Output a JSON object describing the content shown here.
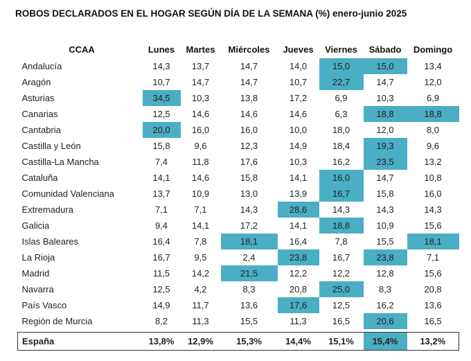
{
  "title": "ROBOS DECLARADOS EN EL HOGAR SEGÚN DÍA DE LA SEMANA (%) enero-junio 2025",
  "highlight_color": "#4aaec4",
  "table": {
    "headers": [
      "CCAA",
      "Lunes",
      "Martes",
      "Miércoles",
      "Jueves",
      "Viernes",
      "Sábado",
      "Domingo"
    ],
    "rows": [
      {
        "name": "Andalucía",
        "values": [
          "14,3",
          "13,7",
          "14,7",
          "14,0",
          "15,0",
          "15,0",
          "13,4"
        ],
        "highlighted": [
          4,
          5
        ]
      },
      {
        "name": "Aragón",
        "values": [
          "10,7",
          "14,7",
          "14,7",
          "10,7",
          "22,7",
          "14,7",
          "12,0"
        ],
        "highlighted": [
          4
        ]
      },
      {
        "name": "Asturias",
        "values": [
          "34,5",
          "10,3",
          "13,8",
          "17,2",
          "6,9",
          "10,3",
          "6,9"
        ],
        "highlighted": [
          0
        ]
      },
      {
        "name": "Canarias",
        "values": [
          "12,5",
          "14,6",
          "14,6",
          "14,6",
          "6,3",
          "18,8",
          "18,8"
        ],
        "highlighted": [
          5,
          6
        ]
      },
      {
        "name": "Cantabria",
        "values": [
          "20,0",
          "16,0",
          "16,0",
          "10,0",
          "18,0",
          "12,0",
          "8,0"
        ],
        "highlighted": [
          0
        ]
      },
      {
        "name": "Castilla y León",
        "values": [
          "15,8",
          "9,6",
          "12,3",
          "14,9",
          "18,4",
          "19,3",
          "9,6"
        ],
        "highlighted": [
          5
        ]
      },
      {
        "name": "Castilla-La Mancha",
        "values": [
          "7,4",
          "11,8",
          "17,6",
          "10,3",
          "16,2",
          "23,5",
          "13,2"
        ],
        "highlighted": [
          5
        ]
      },
      {
        "name": "Cataluña",
        "values": [
          "14,1",
          "14,6",
          "15,8",
          "14,1",
          "16,0",
          "14,7",
          "10,8"
        ],
        "highlighted": [
          4
        ]
      },
      {
        "name": "Comunidad Valenciana",
        "values": [
          "13,7",
          "10,9",
          "13,0",
          "13,9",
          "16,7",
          "15,8",
          "16,0"
        ],
        "highlighted": [
          4
        ]
      },
      {
        "name": "Extremadura",
        "values": [
          "7,1",
          "7,1",
          "14,3",
          "28,6",
          "14,3",
          "14,3",
          "14,3"
        ],
        "highlighted": [
          3
        ]
      },
      {
        "name": "Galicia",
        "values": [
          "9,4",
          "14,1",
          "17,2",
          "14,1",
          "18,8",
          "10,9",
          "15,6"
        ],
        "highlighted": [
          4
        ]
      },
      {
        "name": "Islas Baleares",
        "values": [
          "16,4",
          "7,8",
          "18,1",
          "16,4",
          "7,8",
          "15,5",
          "18,1"
        ],
        "highlighted": [
          2,
          6
        ]
      },
      {
        "name": "La Rioja",
        "values": [
          "16,7",
          "9,5",
          "2,4",
          "23,8",
          "16,7",
          "23,8",
          "7,1"
        ],
        "highlighted": [
          3,
          5
        ]
      },
      {
        "name": "Madrid",
        "values": [
          "11,5",
          "14,2",
          "21,5",
          "12,2",
          "12,2",
          "12,8",
          "15,6"
        ],
        "highlighted": [
          2
        ]
      },
      {
        "name": "Navarra",
        "values": [
          "12,5",
          "4,2",
          "8,3",
          "20,8",
          "25,0",
          "8,3",
          "20,8"
        ],
        "highlighted": [
          4
        ]
      },
      {
        "name": "País Vasco",
        "values": [
          "14,9",
          "11,7",
          "13,6",
          "17,6",
          "12,5",
          "16,2",
          "13,6"
        ],
        "highlighted": [
          3
        ]
      },
      {
        "name": "Región de Murcia",
        "values": [
          "8,2",
          "11,3",
          "15,5",
          "11,3",
          "16,5",
          "20,6",
          "16,5"
        ],
        "highlighted": [
          5
        ]
      }
    ],
    "total": {
      "name": "España",
      "values": [
        "13,8%",
        "12,9%",
        "15,3%",
        "14,4%",
        "15,1%",
        "15,4%",
        "13,2%"
      ],
      "highlighted": [
        5
      ]
    }
  }
}
